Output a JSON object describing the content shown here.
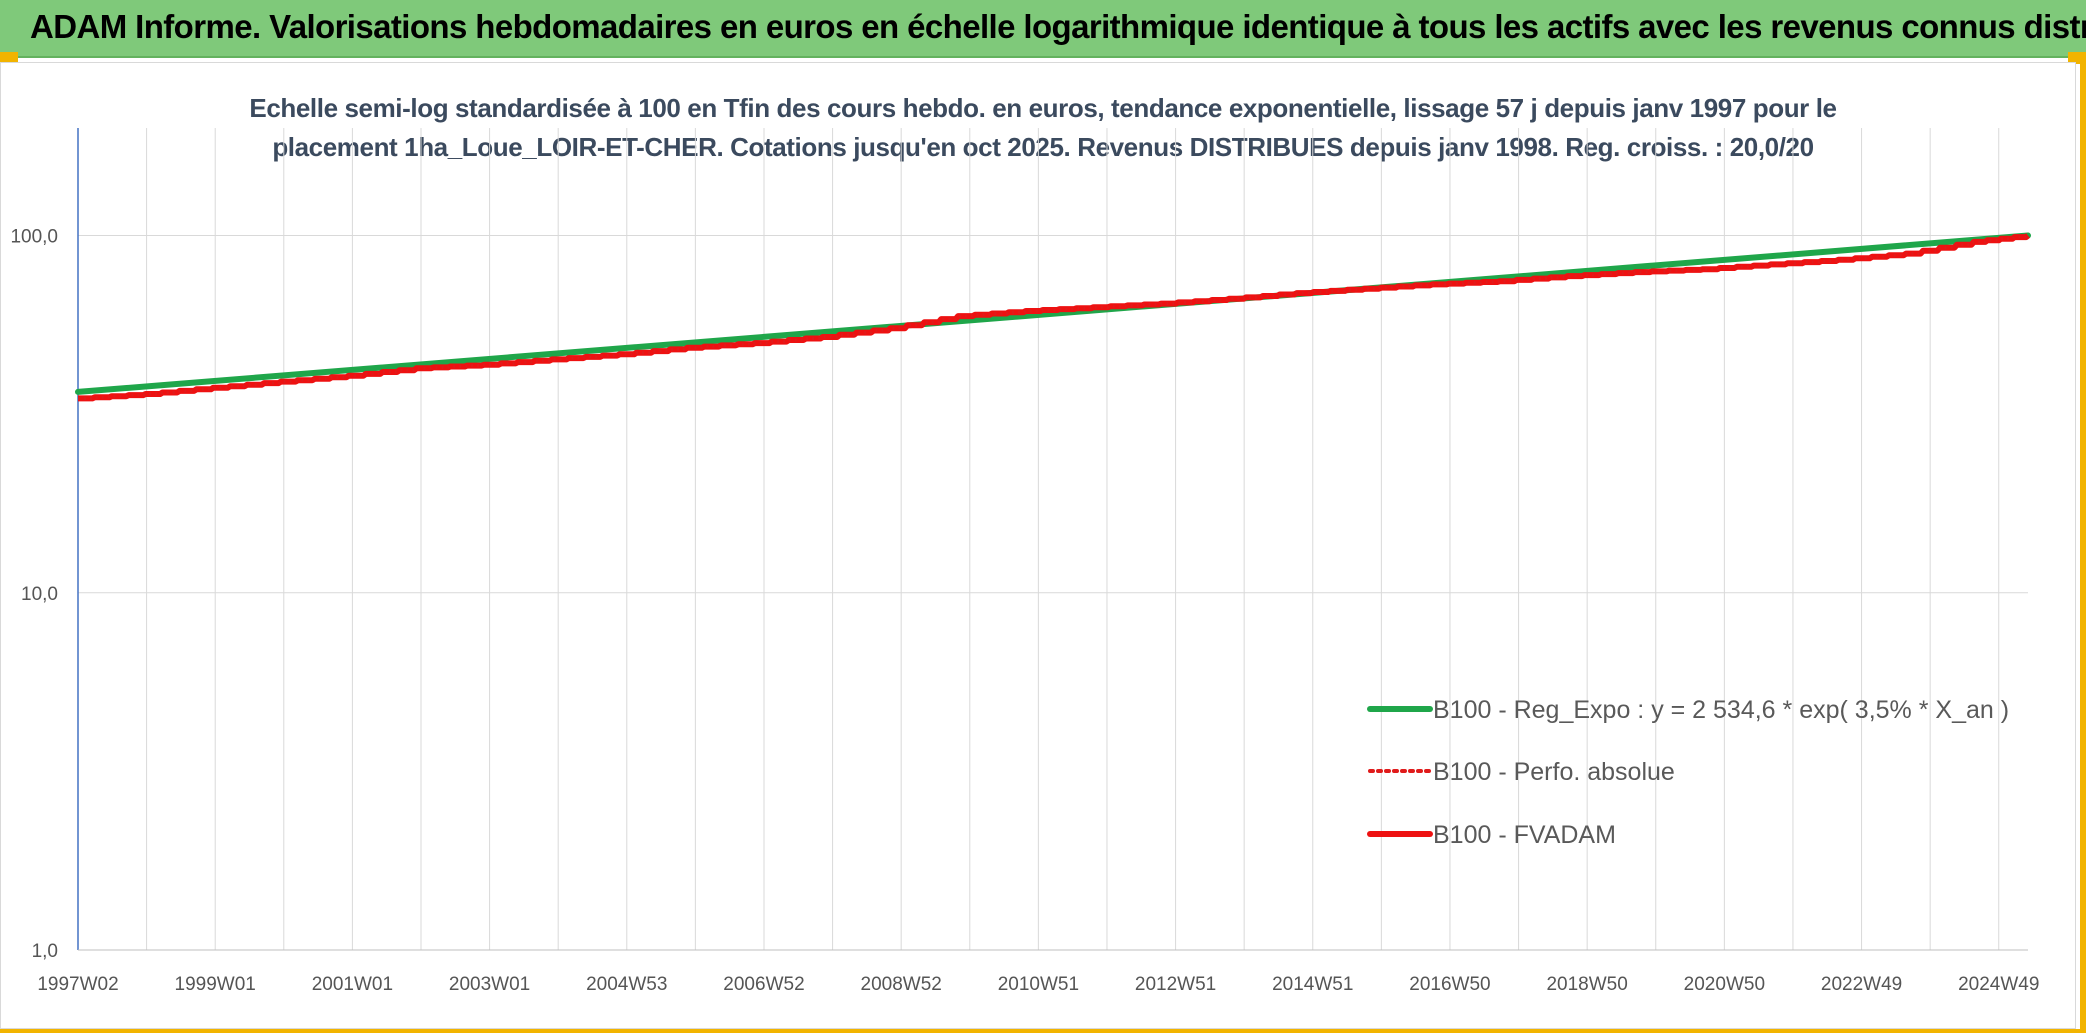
{
  "banner": {
    "title": "ADAM Informe. Valorisations hebdomadaires en euros en échelle logarithmique identique à tous les actifs avec les revenus connus distribués"
  },
  "colors": {
    "banner_bg": "#7fc97a",
    "accent_frame": "#f2b400",
    "regression": "#1fa64a",
    "perf_absolue": "#e01b1b",
    "fvadam": "#ee1111",
    "grid": "#d9d9d9"
  },
  "chart_data": {
    "type": "line",
    "title_lines": [
      "Echelle semi-log standardisée à 100 en Tfin des cours hebdo. en euros, tendance exponentielle, lissage 57 j depuis janv 1997 pour le",
      "placement 1ha_Loue_LOIR-ET-CHER. Cotations jusqu'en oct 2025. Revenus DISTRIBUES depuis janv 1998. Reg. croiss. : 20,0/20"
    ],
    "y_scale": "log",
    "ylim": [
      1,
      200
    ],
    "y_ticks": [
      {
        "value": 1,
        "label": "1,0"
      },
      {
        "value": 10,
        "label": "10,0"
      },
      {
        "value": 100,
        "label": "100,0"
      }
    ],
    "x_range": [
      1997.0,
      2025.8
    ],
    "x_tick_labels": [
      "1997W02",
      "1999W01",
      "2001W01",
      "2003W01",
      "2004W53",
      "2006W52",
      "2008W52",
      "2010W51",
      "2012W51",
      "2014W51",
      "2016W50",
      "2018W50",
      "2020W50",
      "2022W49",
      "2024W49"
    ],
    "grid": true,
    "legend_position": "right-inside",
    "series": [
      {
        "name": "B100 - Reg_Expo : y = 2 534,6 * exp( 3,5% *  X_an )",
        "style": "solid-thick",
        "color": "#1fa64a",
        "x": [
          1997.0,
          2025.8
        ],
        "values": [
          36.5,
          100.0
        ]
      },
      {
        "name": "B100 - Perfo. absolue",
        "style": "dotted",
        "color": "#e01b1b",
        "x": [
          1997.0,
          1998.0,
          1999.0,
          2000.0,
          2001.0,
          2002.0,
          2003.0,
          2004.0,
          2005.0,
          2006.0,
          2007.0,
          2008.0,
          2009.0,
          2010.0,
          2011.0,
          2012.0,
          2013.0,
          2014.0,
          2015.0,
          2016.0,
          2017.0,
          2018.0,
          2019.0,
          2020.0,
          2021.0,
          2022.0,
          2023.0,
          2024.0,
          2025.0,
          2025.8
        ],
        "values": [
          35.0,
          36.0,
          37.5,
          39.0,
          40.5,
          42.5,
          43.5,
          45.0,
          46.5,
          48.5,
          50.0,
          52.0,
          55.0,
          59.5,
          61.5,
          63.0,
          64.5,
          66.5,
          69.0,
          71.0,
          73.0,
          74.5,
          77.0,
          79.0,
          80.5,
          83.0,
          85.5,
          89.0,
          96.0,
          100.0
        ]
      },
      {
        "name": "B100 - FVADAM",
        "style": "solid-thick",
        "color": "#ee1111",
        "x": [
          1997.0,
          1998.0,
          1999.0,
          2000.0,
          2001.0,
          2002.0,
          2003.0,
          2004.0,
          2005.0,
          2006.0,
          2007.0,
          2008.0,
          2009.0,
          2010.0,
          2011.0,
          2012.0,
          2013.0,
          2014.0,
          2015.0,
          2016.0,
          2017.0,
          2018.0,
          2019.0,
          2020.0,
          2021.0,
          2022.0,
          2023.0,
          2024.0,
          2025.0,
          2025.8
        ],
        "values": [
          35.0,
          36.0,
          37.5,
          39.0,
          40.5,
          42.5,
          43.5,
          45.0,
          46.5,
          48.5,
          50.0,
          52.0,
          55.0,
          59.5,
          61.5,
          63.0,
          64.5,
          66.5,
          69.0,
          71.0,
          73.0,
          74.5,
          77.0,
          79.0,
          80.5,
          83.0,
          85.5,
          89.0,
          96.0,
          100.0
        ]
      }
    ]
  }
}
